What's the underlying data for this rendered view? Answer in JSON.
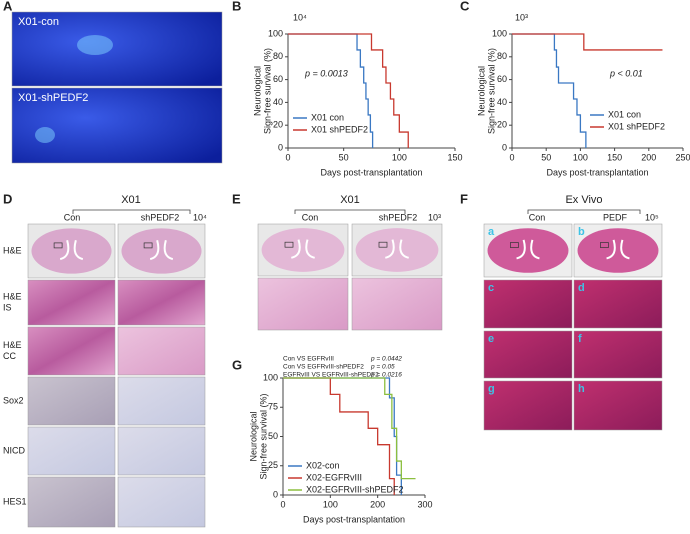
{
  "panels": {
    "A": {
      "letter": "A",
      "images": [
        "X01-con",
        "X01-shPEDF2"
      ]
    },
    "B": {
      "letter": "B"
    },
    "C": {
      "letter": "C"
    },
    "D": {
      "letter": "D",
      "title": "X01",
      "columns": [
        "Con",
        "shPEDF2"
      ],
      "cell_count": "10⁴",
      "rows": [
        [
          "H&E"
        ],
        [
          "H&E",
          "IS"
        ],
        [
          "H&E",
          "CC"
        ],
        [
          "Sox2"
        ],
        [
          "NICD"
        ],
        [
          "HES1"
        ]
      ]
    },
    "E": {
      "letter": "E",
      "title": "X01",
      "columns": [
        "Con",
        "shPEDF2"
      ],
      "cell_count": "10³"
    },
    "F": {
      "letter": "F",
      "title": "Ex Vivo",
      "columns": [
        "Con",
        "PEDF"
      ],
      "cell_count": "10⁵",
      "tiles": [
        "a",
        "b",
        "c",
        "d",
        "e",
        "f",
        "g",
        "h"
      ]
    },
    "G": {
      "letter": "G"
    }
  },
  "chart_data": [
    {
      "type": "line",
      "cell_count": "10⁴",
      "annotation": "p = 0.0013",
      "ylabel": [
        "Neurological",
        "Sign-free survival (%)"
      ],
      "xlabel": "Days post-transplantation",
      "xlim": [
        0,
        150
      ],
      "xticks": [
        0,
        50,
        100,
        150
      ],
      "ylim": [
        0,
        100
      ],
      "yticks": [
        0,
        20,
        40,
        60,
        80,
        100
      ],
      "series": [
        {
          "name": "X01 con",
          "color": "#3a78c3",
          "x": [
            0,
            62,
            62,
            65,
            65,
            68,
            68,
            70,
            70,
            72,
            72,
            74,
            74,
            76,
            76
          ],
          "values": [
            100,
            100,
            86,
            86,
            71,
            71,
            57,
            57,
            43,
            43,
            29,
            29,
            14,
            14,
            0
          ]
        },
        {
          "name": "X01 shPEDF2",
          "color": "#c8392f",
          "x": [
            0,
            75,
            75,
            85,
            85,
            88,
            88,
            92,
            92,
            95,
            95,
            100,
            100,
            108,
            108
          ],
          "values": [
            100,
            100,
            86,
            86,
            71,
            71,
            57,
            57,
            43,
            43,
            29,
            29,
            14,
            14,
            0
          ]
        }
      ]
    },
    {
      "type": "line",
      "cell_count": "10³",
      "annotation": "p < 0.01",
      "ylabel": [
        "Neurological",
        "Sign-free survival (%)"
      ],
      "xlabel": "Days post-transplantation",
      "xlim": [
        0,
        250
      ],
      "xticks": [
        0,
        50,
        100,
        150,
        200,
        250
      ],
      "ylim": [
        0,
        100
      ],
      "yticks": [
        0,
        20,
        40,
        60,
        80,
        100
      ],
      "series": [
        {
          "name": "X01 con",
          "color": "#3a78c3",
          "x": [
            0,
            62,
            62,
            65,
            65,
            68,
            68,
            90,
            90,
            95,
            95,
            100,
            100,
            108,
            108
          ],
          "values": [
            100,
            100,
            86,
            86,
            71,
            71,
            57,
            57,
            43,
            43,
            29,
            29,
            14,
            14,
            0
          ]
        },
        {
          "name": "X01 shPEDF2",
          "color": "#c8392f",
          "x": [
            0,
            105,
            105,
            220
          ],
          "values": [
            100,
            100,
            86,
            86
          ]
        }
      ]
    },
    {
      "type": "line",
      "comparisons": [
        {
          "text": "Con VS EGFRvIII",
          "p": "p = 0.0442"
        },
        {
          "text": "Con VS EGFRvIII-shPEDF2",
          "p": "p = 0.05"
        },
        {
          "text": "EGFRvIII VS EGFRvIII-shPEDF2",
          "p": "p = 0.0216"
        }
      ],
      "ylabel": [
        "Neurological",
        "Sign-free survival (%)"
      ],
      "xlabel": "Days post-transplantation",
      "xlim": [
        0,
        300
      ],
      "xticks": [
        0,
        100,
        200,
        300
      ],
      "ylim": [
        0,
        100
      ],
      "yticks": [
        0,
        25,
        50,
        75,
        100
      ],
      "series": [
        {
          "name": "X02-con",
          "color": "#3a78c3",
          "x": [
            0,
            225,
            225,
            235,
            235,
            240,
            240,
            250,
            250
          ],
          "values": [
            100,
            100,
            83,
            83,
            50,
            50,
            17,
            17,
            0
          ]
        },
        {
          "name": "X02-EGFRvIII",
          "color": "#c8392f",
          "x": [
            0,
            100,
            100,
            120,
            120,
            180,
            180,
            200,
            200,
            225,
            225,
            235,
            235
          ],
          "values": [
            100,
            100,
            86,
            86,
            71,
            71,
            57,
            57,
            43,
            43,
            14,
            14,
            0
          ]
        },
        {
          "name": "X02-EGFRvIII-shPEDF2",
          "color": "#8cbf3f",
          "x": [
            0,
            215,
            215,
            230,
            230,
            240,
            240,
            250,
            250,
            280
          ],
          "values": [
            100,
            100,
            86,
            86,
            57,
            57,
            29,
            29,
            14,
            14
          ]
        }
      ]
    }
  ]
}
